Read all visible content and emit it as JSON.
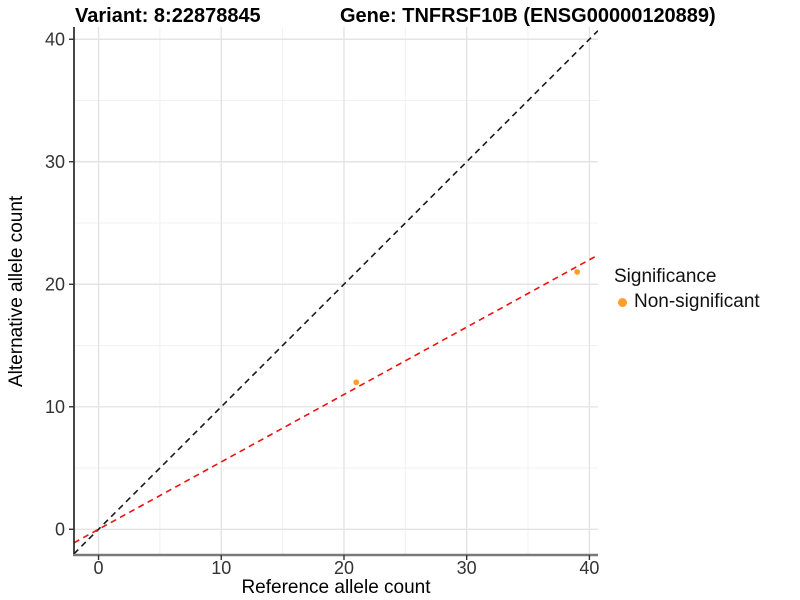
{
  "chart_data": {
    "type": "scatter",
    "titles": {
      "left": "Variant: 8:22878845",
      "right": "Gene: TNFRSF10B (ENSG00000120889)"
    },
    "xlabel": "Reference allele count",
    "ylabel": "Alternative allele count",
    "xlim": [
      -2,
      40.7
    ],
    "ylim": [
      -2.1,
      41
    ],
    "x_major_ticks": [
      0,
      10,
      20,
      30,
      40
    ],
    "y_major_ticks": [
      0,
      10,
      20,
      30,
      40
    ],
    "x_minor_ticks": [
      5,
      15,
      25,
      35
    ],
    "y_minor_ticks": [
      5,
      15,
      25,
      35
    ],
    "grid": {
      "major_color": "#E4E4E4",
      "minor_color": "#F1F1F1",
      "background": "#FFFFFF"
    },
    "axis": {
      "left_line_color": "#1A1A1A",
      "bottom_line_color": "#7A7A7A",
      "tick_color": "#333333"
    },
    "series": [
      {
        "name": "Non-significant",
        "color": "#FF9E2C",
        "marker": "circle",
        "points": [
          [
            21,
            12
          ],
          [
            39,
            21
          ]
        ]
      }
    ],
    "reference_lines": [
      {
        "name": "identity-line",
        "slope": 1,
        "intercept": 0,
        "color": "#1A1A1A",
        "dash": true
      },
      {
        "name": "fit-line",
        "slope": 0.55,
        "intercept": 0,
        "color": "#EE1111",
        "dash": true
      }
    ],
    "legend": {
      "title": "Significance",
      "position": "right",
      "items": [
        {
          "label": "Non-significant",
          "color": "#FF9E2C"
        }
      ]
    }
  }
}
